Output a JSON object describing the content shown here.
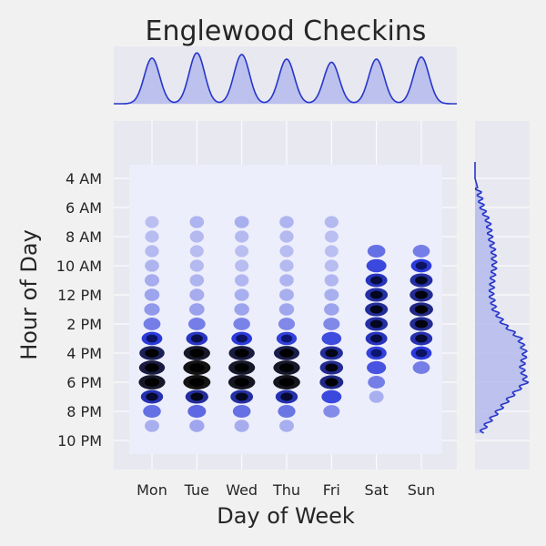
{
  "chart_data": {
    "type": "heatmap",
    "title": "Englewood Checkins",
    "xlabel": "Day of Week",
    "ylabel": "Hour of Day",
    "x_categories": [
      "Mon",
      "Tue",
      "Wed",
      "Thu",
      "Fri",
      "Sat",
      "Sun"
    ],
    "y_ticks": [
      {
        "hour": 4,
        "label": "4 AM"
      },
      {
        "hour": 6,
        "label": "6 AM"
      },
      {
        "hour": 8,
        "label": "8 AM"
      },
      {
        "hour": 10,
        "label": "10 AM"
      },
      {
        "hour": 12,
        "label": "12 PM"
      },
      {
        "hour": 14,
        "label": "2 PM"
      },
      {
        "hour": 16,
        "label": "4 PM"
      },
      {
        "hour": 18,
        "label": "6 PM"
      },
      {
        "hour": 20,
        "label": "8 PM"
      },
      {
        "hour": 22,
        "label": "10 PM"
      }
    ],
    "ylim": [
      -0.5,
      23.5
    ],
    "y_inverted": true,
    "grid": true,
    "day_hour_density": [
      [
        0,
        0,
        0,
        0,
        0,
        0,
        0,
        0.06,
        0.07,
        0.08,
        0.1,
        0.13,
        0.16,
        0.2,
        0.3,
        0.55,
        0.85,
        0.9,
        0.95,
        0.65,
        0.35,
        0.12,
        0,
        0
      ],
      [
        0,
        0,
        0,
        0,
        0,
        0,
        0,
        0.1,
        0.08,
        0.07,
        0.08,
        0.1,
        0.13,
        0.17,
        0.3,
        0.6,
        0.95,
        1.0,
        1.0,
        0.7,
        0.38,
        0.15,
        0,
        0
      ],
      [
        0,
        0,
        0,
        0,
        0,
        0,
        0,
        0.12,
        0.08,
        0.06,
        0.07,
        0.09,
        0.12,
        0.16,
        0.28,
        0.55,
        0.9,
        0.95,
        0.97,
        0.68,
        0.35,
        0.13,
        0,
        0
      ],
      [
        0,
        0,
        0,
        0,
        0,
        0,
        0,
        0.1,
        0.08,
        0.07,
        0.08,
        0.1,
        0.12,
        0.15,
        0.26,
        0.52,
        0.88,
        0.95,
        0.98,
        0.65,
        0.33,
        0.12,
        0,
        0
      ],
      [
        0,
        0,
        0,
        0,
        0,
        0,
        0,
        0.08,
        0.06,
        0.06,
        0.07,
        0.09,
        0.12,
        0.16,
        0.26,
        0.48,
        0.7,
        0.72,
        0.75,
        0.5,
        0.25,
        0,
        0,
        0
      ],
      [
        0,
        0,
        0,
        0,
        0,
        0,
        0,
        0,
        0,
        0.35,
        0.5,
        0.62,
        0.68,
        0.7,
        0.68,
        0.62,
        0.52,
        0.45,
        0.3,
        0.12,
        0,
        0,
        0,
        0
      ],
      [
        0,
        0,
        0,
        0,
        0,
        0,
        0,
        0,
        0,
        0.3,
        0.55,
        0.68,
        0.72,
        0.75,
        0.72,
        0.65,
        0.55,
        0.3,
        0,
        0,
        0,
        0,
        0,
        0
      ]
    ],
    "day_marginal": [
      0.88,
      0.98,
      0.95,
      0.86,
      0.8,
      0.86,
      0.9
    ],
    "hour_marginal": [
      0,
      0,
      0,
      0,
      0,
      0.08,
      0.14,
      0.26,
      0.3,
      0.36,
      0.38,
      0.34,
      0.32,
      0.38,
      0.56,
      0.88,
      0.98,
      0.92,
      1.0,
      0.7,
      0.45,
      0.2,
      0.05,
      0
    ],
    "colors": {
      "background": "#f1f1f1",
      "panel": "#e8e8f0",
      "heatmap_panel": "#edeefb",
      "grid": "#ffffff",
      "density_low": "#c8ccf3",
      "density_high": "#000000",
      "density_mid": "#1a2ad8",
      "marginal_line": "#2736c9",
      "marginal_fill": "#aeb4ec"
    }
  }
}
